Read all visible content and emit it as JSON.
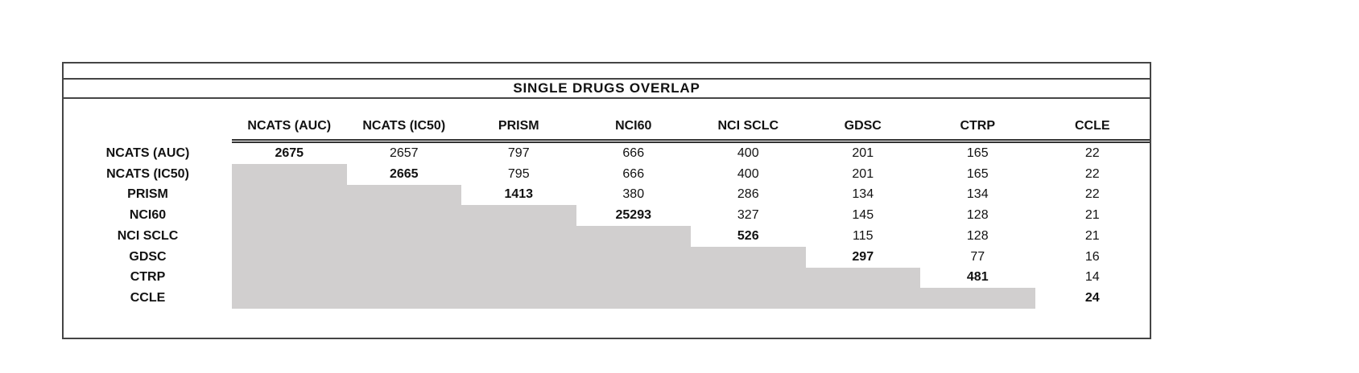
{
  "chart_data": {
    "type": "table",
    "title": "SINGLE DRUGS OVERLAP",
    "columns": [
      "NCATS (AUC)",
      "NCATS (IC50)",
      "PRISM",
      "NCI60",
      "NCI SCLC",
      "GDSC",
      "CTRP",
      "CCLE"
    ],
    "rows": [
      {
        "label": "NCATS (AUC)",
        "values": [
          2675,
          2657,
          797,
          666,
          400,
          201,
          165,
          22
        ]
      },
      {
        "label": "NCATS (IC50)",
        "values": [
          null,
          2665,
          795,
          666,
          400,
          201,
          165,
          22
        ]
      },
      {
        "label": "PRISM",
        "values": [
          null,
          null,
          1413,
          380,
          286,
          134,
          134,
          22
        ]
      },
      {
        "label": "NCI60",
        "values": [
          null,
          null,
          null,
          25293,
          327,
          145,
          128,
          21
        ]
      },
      {
        "label": "NCI SCLC",
        "values": [
          null,
          null,
          null,
          null,
          526,
          115,
          128,
          21
        ]
      },
      {
        "label": "GDSC",
        "values": [
          null,
          null,
          null,
          null,
          null,
          297,
          77,
          16
        ]
      },
      {
        "label": "CTRP",
        "values": [
          null,
          null,
          null,
          null,
          null,
          null,
          481,
          14
        ]
      },
      {
        "label": "CCLE",
        "values": [
          null,
          null,
          null,
          null,
          null,
          null,
          null,
          24
        ]
      }
    ],
    "layout_hints": {
      "lower_triangle_shaded": true,
      "diagonal_bold": true,
      "shaded_color": "#d1cfcf",
      "border_color": "#454545",
      "text_color": "#121212"
    }
  }
}
